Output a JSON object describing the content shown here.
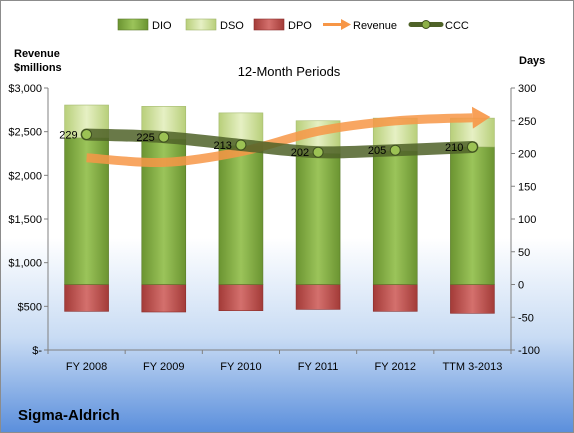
{
  "company": "Sigma-Aldrich",
  "chart_data": {
    "type": "bar",
    "title": "12-Month Periods",
    "left_axis_title": [
      "Revenue",
      "$millions"
    ],
    "right_axis_title": "Days",
    "categories": [
      "FY 2008",
      "FY 2009",
      "FY 2010",
      "FY 2011",
      "FY 2012",
      "TTM 3-2013"
    ],
    "left_ylim": [
      0,
      3000
    ],
    "left_ticks": [
      0,
      500,
      1000,
      1500,
      2000,
      2500,
      3000
    ],
    "left_tick_labels": [
      "$-",
      "$500",
      "$1,000",
      "$1,500",
      "$2,000",
      "$2,500",
      "$3,000"
    ],
    "right_ylim": [
      -100,
      300
    ],
    "right_ticks": [
      -100,
      -50,
      0,
      50,
      100,
      150,
      200,
      250,
      300
    ],
    "legend": [
      "DIO",
      "DSO",
      "DPO",
      "Revenue",
      "CCC"
    ],
    "legend_position": "top",
    "series": [
      {
        "name": "DIO",
        "axis": "right",
        "values": [
          224,
          222,
          212,
          200,
          204,
          210
        ]
      },
      {
        "name": "DSO",
        "axis": "right",
        "values": [
          50,
          50,
          50,
          50,
          50,
          44
        ]
      },
      {
        "name": "DPO",
        "axis": "right",
        "values": [
          -41,
          -42,
          -40,
          -38,
          -41,
          -44
        ]
      },
      {
        "name": "Revenue",
        "axis": "left",
        "values": [
          2201,
          2148,
          2271,
          2505,
          2623,
          2660
        ]
      },
      {
        "name": "CCC",
        "axis": "right",
        "values": [
          229,
          225,
          213,
          202,
          205,
          210
        ]
      }
    ],
    "ccc_labels": [
      "229",
      "225",
      "213",
      "202",
      "205",
      "210"
    ],
    "colors": {
      "DIO": "#7fa83f",
      "DSO": "#c9dc8f",
      "DPO": "#c0504d",
      "Revenue": "#f79646",
      "CCC": "#4f6228"
    }
  }
}
